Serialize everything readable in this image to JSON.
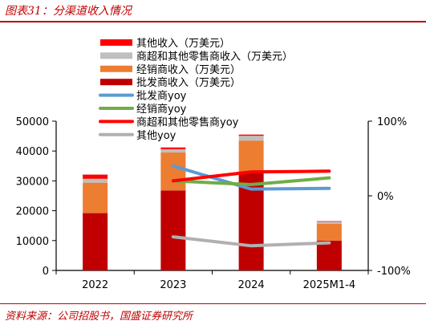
{
  "figure_title": "图表31：分渠道收入情况",
  "source_note": "资料来源：公司招股书，国盛证券研究所",
  "chart_data": {
    "type": "bar",
    "categories": [
      "2022",
      "2023",
      "2024",
      "2025M1-4"
    ],
    "y_left": {
      "ylim": [
        0,
        50000
      ],
      "ticks": [
        "0",
        "10000",
        "20000",
        "30000",
        "40000",
        "50000"
      ]
    },
    "y_right": {
      "ylim": [
        -100,
        100
      ],
      "ticks": [
        "100%",
        "0%",
        "-100%"
      ]
    },
    "bar_series": [
      {
        "name": "批发商收入（万美元）",
        "color": "#c00000",
        "values": [
          19200,
          26800,
          33000,
          10000
        ]
      },
      {
        "name": "经销商收入（万美元）",
        "color": "#ed7d31",
        "values": [
          10200,
          12700,
          10500,
          5600
        ]
      },
      {
        "name": "商超和其他零售商收入（万美元）",
        "color": "#bfbfbf",
        "values": [
          1300,
          1100,
          1600,
          700
        ]
      },
      {
        "name": "其他收入（万美元）",
        "color": "#ff0000",
        "values": [
          1400,
          600,
          400,
          200
        ]
      }
    ],
    "line_series": [
      {
        "name": "批发商yoy",
        "color": "#5b9bd5",
        "values": [
          null,
          40,
          9,
          10
        ]
      },
      {
        "name": "经销商yoy",
        "color": "#70ad47",
        "values": [
          null,
          20,
          15,
          24
        ]
      },
      {
        "name": "商超和其他零售商yoy",
        "color": "#ff0000",
        "values": [
          null,
          20,
          32,
          33
        ]
      },
      {
        "name": "其他yoy",
        "color": "#b0b0b0",
        "values": [
          null,
          -55,
          -67,
          -63
        ]
      }
    ],
    "legend": [
      {
        "label": "其他收入（万美元）",
        "color": "#ff0000",
        "kind": "bar"
      },
      {
        "label": "商超和其他零售商收入（万美元）",
        "color": "#bfbfbf",
        "kind": "bar"
      },
      {
        "label": "经销商收入（万美元）",
        "color": "#ed7d31",
        "kind": "bar"
      },
      {
        "label": "批发商收入（万美元）",
        "color": "#c00000",
        "kind": "bar"
      },
      {
        "label": "批发商yoy",
        "color": "#5b9bd5",
        "kind": "line"
      },
      {
        "label": "经销商yoy",
        "color": "#70ad47",
        "kind": "line"
      },
      {
        "label": "商超和其他零售商yoy",
        "color": "#ff0000",
        "kind": "line"
      },
      {
        "label": "其他yoy",
        "color": "#b0b0b0",
        "kind": "line"
      }
    ],
    "legend_position": "top-center",
    "grid": false
  }
}
